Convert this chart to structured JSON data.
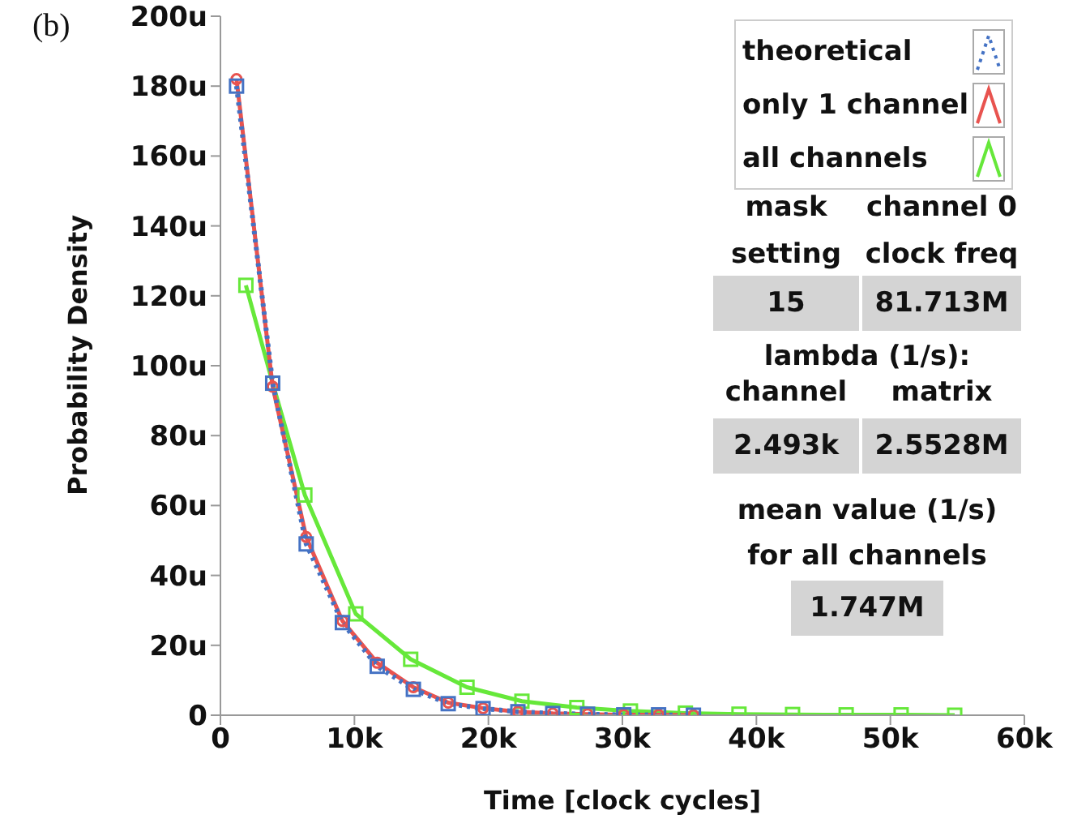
{
  "chart_data": {
    "type": "line",
    "xlabel": "Time [clock cycles]",
    "ylabel": "Probability Density",
    "xlim": [
      0,
      60000
    ],
    "xticks": [
      {
        "value": 0,
        "label": "0"
      },
      {
        "value": 10000,
        "label": "10k"
      },
      {
        "value": 20000,
        "label": "20k"
      },
      {
        "value": 30000,
        "label": "30k"
      },
      {
        "value": 40000,
        "label": "40k"
      },
      {
        "value": 50000,
        "label": "50k"
      },
      {
        "value": 60000,
        "label": "60k"
      }
    ],
    "ylim": [
      0,
      200
    ],
    "yticks": [
      {
        "value": 0,
        "label": "0"
      },
      {
        "value": 20,
        "label": "20u"
      },
      {
        "value": 40,
        "label": "40u"
      },
      {
        "value": 60,
        "label": "60u"
      },
      {
        "value": 80,
        "label": "80u"
      },
      {
        "value": 100,
        "label": "100u"
      },
      {
        "value": 120,
        "label": "120u"
      },
      {
        "value": 140,
        "label": "140u"
      },
      {
        "value": 160,
        "label": "160u"
      },
      {
        "value": 180,
        "label": "180u"
      },
      {
        "value": 200,
        "label": "200u"
      }
    ],
    "legend": "top right",
    "series": [
      {
        "name": "theoretical",
        "color": "#4472c4",
        "line_style": "dotted",
        "marker": "square",
        "x": [
          1200,
          3900,
          6400,
          9100,
          11700,
          14400,
          17000,
          19600,
          22200,
          24800,
          27400,
          30100,
          32700,
          35300
        ],
        "values": [
          180,
          95,
          49,
          26.5,
          14,
          7.4,
          3.3,
          1.9,
          1,
          0.5,
          0.3,
          0.1,
          0.1,
          0
        ]
      },
      {
        "name": "only 1 channel",
        "color": "#e8534f",
        "line_style": "solid",
        "marker": "circle",
        "x": [
          1200,
          3900,
          6400,
          9100,
          11700,
          14400,
          17000,
          19600,
          22200,
          24800,
          27400,
          30100,
          32700,
          35300
        ],
        "values": [
          182,
          94,
          51,
          27,
          15,
          8,
          3.6,
          2,
          1,
          0.5,
          0.3,
          0.1,
          0.1,
          0
        ]
      },
      {
        "name": "all channels",
        "color": "#66e83a",
        "line_style": "solid",
        "marker": "square",
        "x": [
          1900,
          3900,
          6300,
          10100,
          14200,
          18400,
          22500,
          26600,
          30600,
          34700,
          38700,
          42700,
          46700,
          50800,
          54800
        ],
        "values": [
          123,
          95,
          63,
          29,
          16,
          8,
          4,
          2.2,
          1.2,
          0.6,
          0.3,
          0.2,
          0.1,
          0.1,
          0
        ]
      }
    ],
    "annotations": [
      "(b)",
      "mask",
      "setting",
      "channel 0",
      "clock freq",
      "15",
      "81.713M",
      "lambda (1/s):",
      "channel",
      "matrix",
      "2.493k",
      "2.5528M",
      "mean value (1/s)",
      "for all channels",
      "1.747M"
    ]
  }
}
